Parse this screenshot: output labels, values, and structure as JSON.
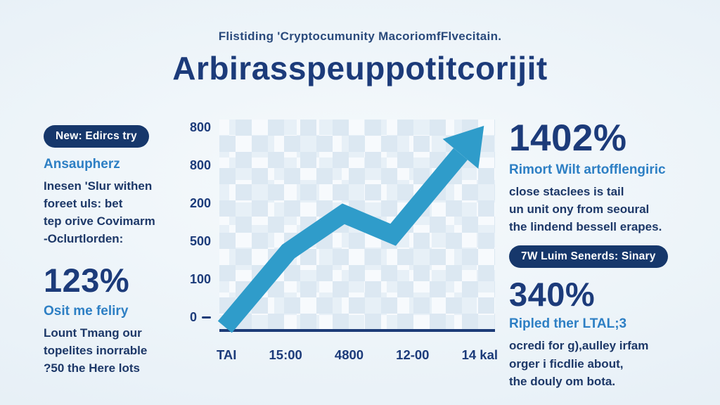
{
  "header": {
    "eyebrow": "Flistiding 'Cryptocumunity MacoriomfFlvecitain.",
    "title": "Arbirasspeuppotitcorijit"
  },
  "left": {
    "badge": "New: Edircs try",
    "subhead1": "Ansaupherz",
    "body1": [
      "Inesen 'Slur withen",
      "foreet uls: bet",
      "tep orive Covimarm",
      "-Oclurtlorden:"
    ],
    "stat": "123%",
    "subhead2": "Osit me feliry",
    "body2": [
      "Lount Tmang our",
      "topelites inorrable",
      "?50 the Here lots"
    ]
  },
  "right": {
    "stat1": "1402%",
    "subhead1": "Rimort Wilt artofflengiric",
    "body1": [
      "close staclees is tail",
      "un unit ony from seoural",
      "the lindend bessell erapes."
    ],
    "badge": "7W Luim Senerds: Sinary",
    "stat2": "340%",
    "subhead2": "Ripled ther LTAL;3",
    "body2": [
      "ocredi for g),aulley irfam",
      "orger i ficdlie about,",
      "the douly om bota."
    ]
  },
  "chart_data": {
    "type": "line",
    "title": "",
    "y_ticks": [
      "800",
      "800",
      "200",
      "500",
      "100",
      "0"
    ],
    "x_labels": [
      "TAI",
      "15:00",
      "4800",
      "12-00",
      "14 kal"
    ],
    "points_norm": [
      [
        0.02,
        0.99
      ],
      [
        0.25,
        0.63
      ],
      [
        0.45,
        0.45
      ],
      [
        0.63,
        0.55
      ],
      [
        0.96,
        0.03
      ]
    ],
    "values_est": [
      0,
      300,
      450,
      370,
      790
    ],
    "arrow_color": "#2f9cca",
    "grid": "light-blue checker mosaic",
    "description": "Thick upward-trending arrow line over a light blue checkered background"
  },
  "colors": {
    "navy": "#1c3b7a",
    "accent_blue": "#2d7fc4",
    "arrow_blue": "#2f9cca",
    "badge_bg": "#16376b",
    "background": "#eaf2f8"
  }
}
